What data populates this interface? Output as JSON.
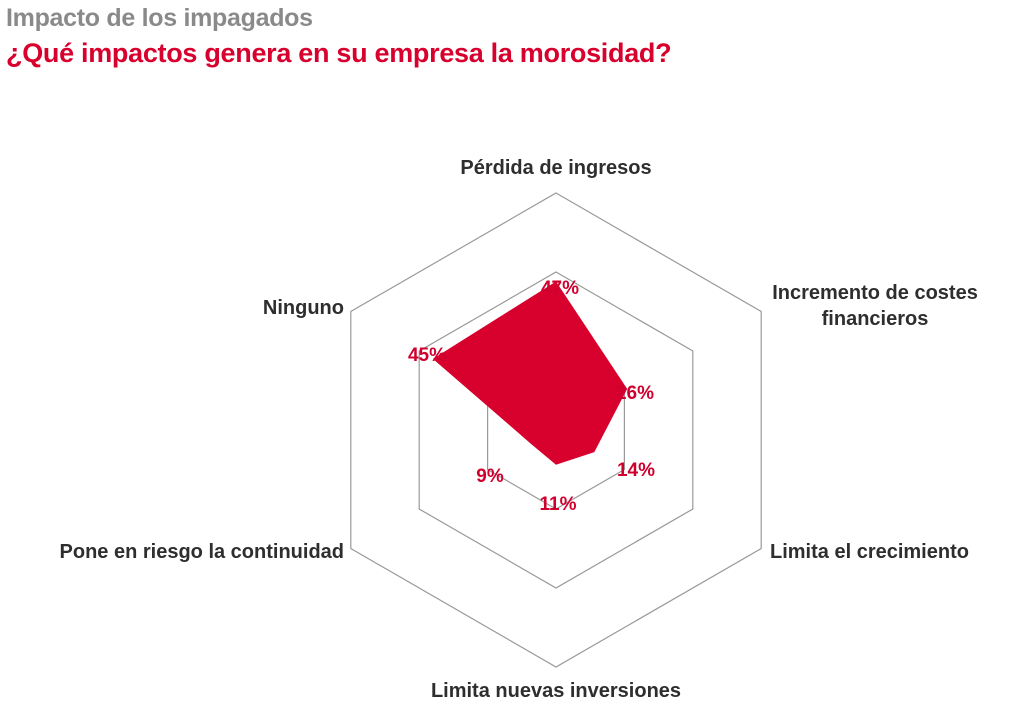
{
  "header": {
    "subtitle": "Impacto de los impagados",
    "title": "¿Qué impactos genera en su empresa la morosidad?"
  },
  "colors": {
    "accent": "#d8002d",
    "grid": "#9a9a9a",
    "text": "#2e2e2e"
  },
  "chart_data": {
    "type": "radar",
    "grid_levels": [
      1,
      2,
      3
    ],
    "axes": [
      {
        "label": [
          "Pérdida de ingresos"
        ],
        "value": 47,
        "value_label": "47%"
      },
      {
        "label": [
          "Incremento de costes",
          "financieros"
        ],
        "value": 26,
        "value_label": "26%"
      },
      {
        "label": [
          "Limita el crecimiento"
        ],
        "value": 14,
        "value_label": "14%"
      },
      {
        "label": [
          "Limita nuevas inversiones"
        ],
        "value": 11,
        "value_label": "11%"
      },
      {
        "label": [
          "Pone en riesgo la continuidad"
        ],
        "value": 9,
        "value_label": "9%"
      },
      {
        "label": [
          "Ninguno"
        ],
        "value": 45,
        "value_label": "45%"
      }
    ]
  }
}
